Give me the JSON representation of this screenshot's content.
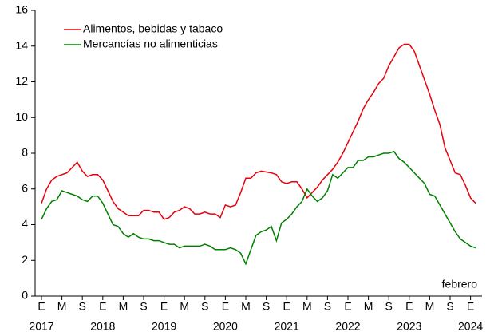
{
  "chart_data": {
    "type": "line",
    "categories": [
      "E",
      null,
      null,
      null,
      "M",
      null,
      null,
      null,
      "S",
      null,
      null,
      null,
      "E",
      null,
      null,
      null,
      "M",
      null,
      null,
      null,
      "S",
      null,
      null,
      null,
      "E",
      null,
      null,
      null,
      "M",
      null,
      null,
      null,
      "S",
      null,
      null,
      null,
      "E",
      null,
      null,
      null,
      "M",
      null,
      null,
      null,
      "S",
      null,
      null,
      null,
      "E",
      null,
      null,
      null,
      "M",
      null,
      null,
      null,
      "S",
      null,
      null,
      null,
      "E",
      null,
      null,
      null,
      "M",
      null,
      null,
      null,
      "S",
      null,
      null,
      null,
      "E",
      null,
      null,
      null,
      "M",
      null,
      null,
      null,
      "S",
      null,
      null,
      null,
      "E",
      null
    ],
    "category_groups": [
      "2017",
      "2018",
      "2019",
      "2020",
      "2021",
      "2022",
      "2023",
      "2024"
    ],
    "series": [
      {
        "name": "Alimentos, bebidas y tabaco",
        "color": "#e8000b",
        "values": [
          5.2,
          6.0,
          6.5,
          6.7,
          6.8,
          6.9,
          7.2,
          7.5,
          7.0,
          6.7,
          6.8,
          6.8,
          6.5,
          5.9,
          5.3,
          4.9,
          4.7,
          4.5,
          4.5,
          4.5,
          4.8,
          4.8,
          4.7,
          4.7,
          4.3,
          4.4,
          4.7,
          4.8,
          5.0,
          4.9,
          4.6,
          4.6,
          4.7,
          4.6,
          4.6,
          4.4,
          5.1,
          5.0,
          5.1,
          5.8,
          6.6,
          6.6,
          6.9,
          7.0,
          6.95,
          6.9,
          6.8,
          6.4,
          6.3,
          6.4,
          6.4,
          6.0,
          5.5,
          5.8,
          6.1,
          6.5,
          6.8,
          7.1,
          7.5,
          8.0,
          8.6,
          9.2,
          9.8,
          10.5,
          11.0,
          11.4,
          11.9,
          12.2,
          12.9,
          13.4,
          13.9,
          14.1,
          14.1,
          13.7,
          12.9,
          12.1,
          11.3,
          10.4,
          9.6,
          8.3,
          7.6,
          6.9,
          6.8,
          6.2,
          5.5,
          5.2
        ]
      },
      {
        "name": "Mercancías no alimenticias",
        "color": "#008000",
        "values": [
          4.3,
          4.9,
          5.3,
          5.4,
          5.9,
          5.8,
          5.7,
          5.6,
          5.4,
          5.3,
          5.6,
          5.6,
          5.2,
          4.6,
          4.0,
          3.9,
          3.5,
          3.3,
          3.5,
          3.3,
          3.2,
          3.2,
          3.1,
          3.1,
          3.0,
          2.9,
          2.9,
          2.7,
          2.8,
          2.8,
          2.8,
          2.8,
          2.9,
          2.8,
          2.6,
          2.6,
          2.6,
          2.7,
          2.6,
          2.4,
          1.8,
          2.6,
          3.4,
          3.6,
          3.7,
          3.9,
          3.1,
          4.1,
          4.3,
          4.6,
          5.0,
          5.3,
          6.0,
          5.6,
          5.3,
          5.5,
          5.9,
          6.8,
          6.6,
          6.9,
          7.2,
          7.2,
          7.6,
          7.6,
          7.8,
          7.8,
          7.9,
          8.0,
          8.0,
          8.1,
          7.7,
          7.5,
          7.2,
          6.9,
          6.6,
          6.3,
          5.7,
          5.6,
          5.1,
          4.6,
          4.1,
          3.6,
          3.2,
          3.0,
          2.8,
          2.7
        ]
      }
    ],
    "ylim": [
      0,
      16
    ],
    "yticks": [
      0,
      2,
      4,
      6,
      8,
      10,
      12,
      14,
      16
    ],
    "annotation": "febrero",
    "legend": "upper-left"
  }
}
